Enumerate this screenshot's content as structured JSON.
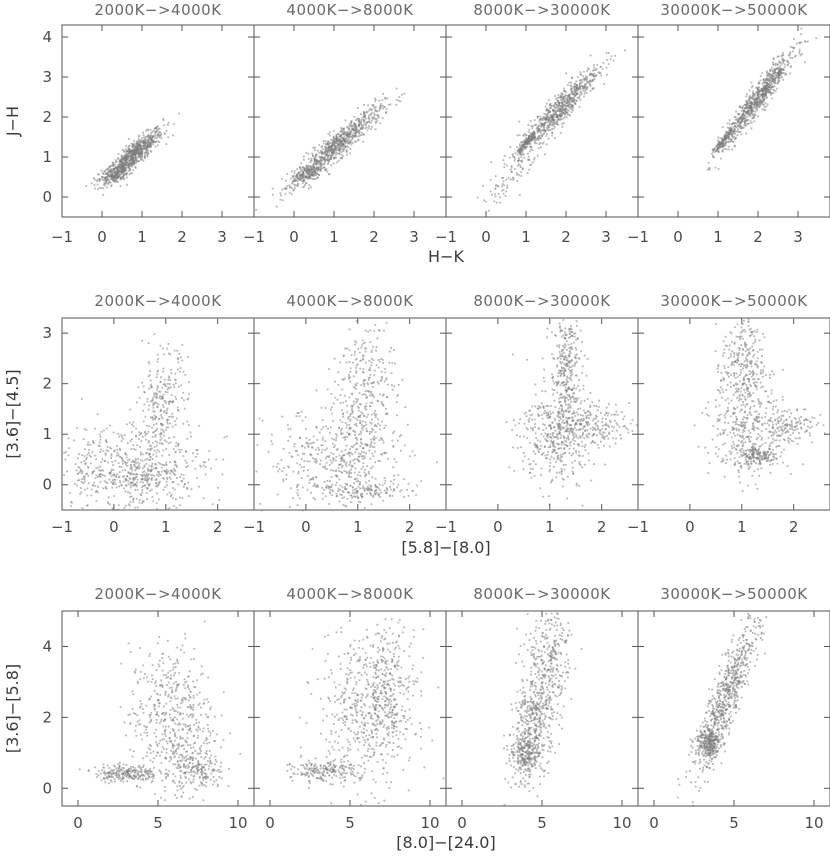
{
  "chart_data": [
    {
      "type": "scatter",
      "xlabel": "H−K",
      "ylabel": "J−H",
      "xlim": [
        -1,
        3.8
      ],
      "ylim": [
        -0.5,
        4.3
      ],
      "xticks": [
        -1,
        0,
        1,
        2,
        3
      ],
      "yticks": [
        0,
        1,
        2,
        3,
        4
      ],
      "grid": false,
      "panels": [
        {
          "title": "2000K−>4000K",
          "clusters": [
            {
              "x": 0.8,
              "y": 1.1,
              "sx": 0.35,
              "sy": 0.32,
              "rho": 0.88,
              "w": 0.75
            },
            {
              "x": 0.3,
              "y": 0.6,
              "sx": 0.2,
              "sy": 0.15,
              "rho": 0.6,
              "w": 0.25
            }
          ]
        },
        {
          "title": "4000K−>8000K",
          "clusters": [
            {
              "x": 1.1,
              "y": 1.35,
              "sx": 0.55,
              "sy": 0.48,
              "rho": 0.93,
              "w": 0.8
            },
            {
              "x": 0.3,
              "y": 0.6,
              "sx": 0.2,
              "sy": 0.15,
              "rho": 0.6,
              "w": 0.2
            }
          ]
        },
        {
          "title": "8000K−>30000K",
          "clusters": [
            {
              "x": 1.8,
              "y": 2.2,
              "sx": 0.5,
              "sy": 0.55,
              "rho": 0.93,
              "w": 0.75
            },
            {
              "x": 0.6,
              "y": 0.6,
              "sx": 0.35,
              "sy": 0.4,
              "rho": 0.8,
              "w": 0.1
            },
            {
              "x": 1.0,
              "y": 1.4,
              "sx": 0.12,
              "sy": 0.15,
              "rho": 0.9,
              "w": 0.15
            }
          ]
        },
        {
          "title": "30000K−>50000K",
          "clusters": [
            {
              "x": 2.0,
              "y": 2.5,
              "sx": 0.45,
              "sy": 0.6,
              "rho": 0.95,
              "w": 0.85
            },
            {
              "x": 1.1,
              "y": 1.4,
              "sx": 0.12,
              "sy": 0.15,
              "rho": 0.9,
              "w": 0.15
            }
          ]
        }
      ]
    },
    {
      "type": "scatter",
      "xlabel": "[5.8]−[8.0]",
      "ylabel": "[3.6]−[4.5]",
      "xlim": [
        -1,
        2.7
      ],
      "ylim": [
        -0.5,
        3.3
      ],
      "xticks": [
        -1,
        0,
        1,
        2
      ],
      "yticks": [
        0,
        1,
        2,
        3
      ],
      "grid": false,
      "panels": [
        {
          "title": "2000K−>4000K",
          "clusters": [
            {
              "x": 0.3,
              "y": 0.35,
              "sx": 0.75,
              "sy": 0.45,
              "rho": 0.0,
              "w": 0.55
            },
            {
              "x": 0.9,
              "y": 1.5,
              "sx": 0.25,
              "sy": 0.6,
              "rho": 0.3,
              "w": 0.3
            },
            {
              "x": 0.5,
              "y": 0.2,
              "sx": 0.5,
              "sy": 0.15,
              "rho": 0.0,
              "w": 0.15
            }
          ]
        },
        {
          "title": "4000K−>8000K",
          "clusters": [
            {
              "x": 0.6,
              "y": 0.5,
              "sx": 0.7,
              "sy": 0.5,
              "rho": 0.0,
              "w": 0.45
            },
            {
              "x": 1.1,
              "y": 1.7,
              "sx": 0.3,
              "sy": 0.8,
              "rho": 0.3,
              "w": 0.4
            },
            {
              "x": 1.0,
              "y": -0.1,
              "sx": 0.5,
              "sy": 0.08,
              "rho": 0.0,
              "w": 0.15
            }
          ]
        },
        {
          "title": "8000K−>30000K",
          "clusters": [
            {
              "x": 1.1,
              "y": 1.0,
              "sx": 0.35,
              "sy": 0.5,
              "rho": 0.0,
              "w": 0.45
            },
            {
              "x": 1.3,
              "y": 2.3,
              "sx": 0.15,
              "sy": 0.6,
              "rho": 0.0,
              "w": 0.35
            },
            {
              "x": 1.8,
              "y": 1.2,
              "sx": 0.35,
              "sy": 0.2,
              "rho": 0.0,
              "w": 0.2
            }
          ]
        },
        {
          "title": "30000K−>50000K",
          "clusters": [
            {
              "x": 1.1,
              "y": 1.1,
              "sx": 0.35,
              "sy": 0.5,
              "rho": 0.0,
              "w": 0.4
            },
            {
              "x": 1.0,
              "y": 2.4,
              "sx": 0.2,
              "sy": 0.5,
              "rho": 0.0,
              "w": 0.3
            },
            {
              "x": 1.3,
              "y": 0.6,
              "sx": 0.2,
              "sy": 0.1,
              "rho": 0.0,
              "w": 0.15
            },
            {
              "x": 1.9,
              "y": 1.2,
              "sx": 0.25,
              "sy": 0.2,
              "rho": 0.0,
              "w": 0.15
            }
          ]
        }
      ]
    },
    {
      "type": "scatter",
      "xlabel": "[8.0]−[24.0]",
      "ylabel": "[3.6]−[5.8]",
      "xlim": [
        -1,
        11
      ],
      "ylim": [
        -0.5,
        5
      ],
      "xticks": [
        0,
        5,
        10
      ],
      "yticks": [
        0,
        2,
        4
      ],
      "grid": false,
      "panels": [
        {
          "title": "2000K−>4000K",
          "clusters": [
            {
              "x": 5.8,
              "y": 2.0,
              "sx": 1.3,
              "sy": 1.0,
              "rho": 0.0,
              "w": 0.55
            },
            {
              "x": 3.0,
              "y": 0.45,
              "sx": 1.0,
              "sy": 0.12,
              "rho": 0.0,
              "w": 0.25
            },
            {
              "x": 7.5,
              "y": 0.5,
              "sx": 0.8,
              "sy": 0.3,
              "rho": 0.0,
              "w": 0.2
            }
          ]
        },
        {
          "title": "4000K−>8000K",
          "clusters": [
            {
              "x": 6.0,
              "y": 2.2,
              "sx": 1.5,
              "sy": 1.1,
              "rho": 0.0,
              "w": 0.6
            },
            {
              "x": 3.3,
              "y": 0.5,
              "sx": 1.0,
              "sy": 0.15,
              "rho": 0.0,
              "w": 0.2
            },
            {
              "x": 7.5,
              "y": 3.0,
              "sx": 0.8,
              "sy": 0.8,
              "rho": 0.0,
              "w": 0.2
            }
          ]
        },
        {
          "title": "8000K−>30000K",
          "clusters": [
            {
              "x": 4.5,
              "y": 2.0,
              "sx": 0.8,
              "sy": 0.9,
              "rho": 0.5,
              "w": 0.6
            },
            {
              "x": 4.0,
              "y": 1.0,
              "sx": 0.5,
              "sy": 0.25,
              "rho": 0.0,
              "w": 0.2
            },
            {
              "x": 5.5,
              "y": 4.0,
              "sx": 0.7,
              "sy": 0.6,
              "rho": 0.0,
              "w": 0.2
            }
          ]
        },
        {
          "title": "30000K−>50000K",
          "clusters": [
            {
              "x": 4.5,
              "y": 2.6,
              "sx": 1.0,
              "sy": 1.1,
              "rho": 0.88,
              "w": 0.75
            },
            {
              "x": 3.3,
              "y": 1.3,
              "sx": 0.4,
              "sy": 0.2,
              "rho": 0.0,
              "w": 0.25
            }
          ]
        }
      ]
    }
  ]
}
